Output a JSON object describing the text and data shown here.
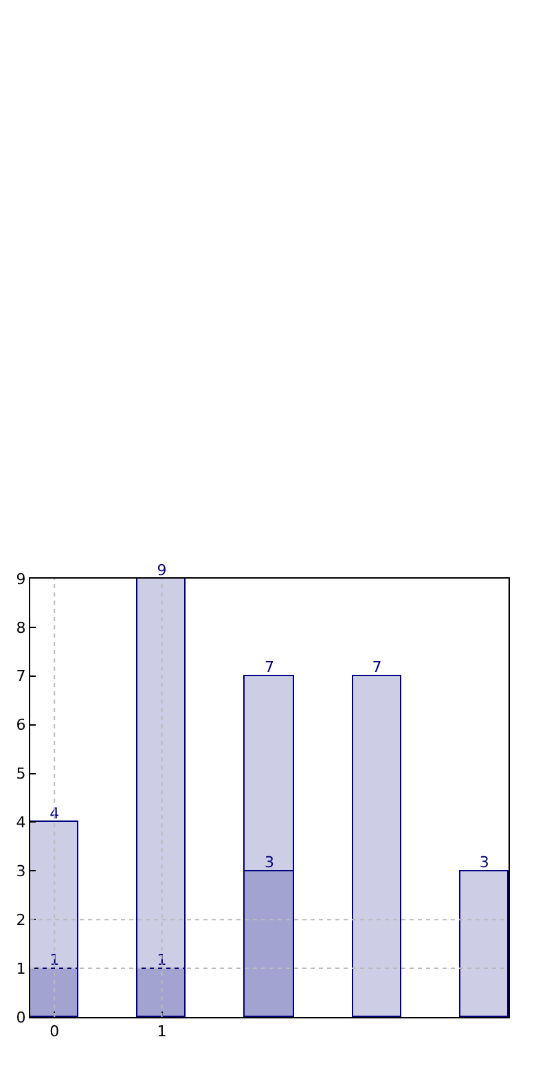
{
  "chart_data": {
    "type": "bar",
    "stacked": true,
    "x": [
      0,
      1,
      2,
      3,
      4
    ],
    "series": [
      {
        "color": "#a3a3d1",
        "values": [
          1,
          1,
          3,
          null,
          null
        ],
        "value_labels": [
          "1",
          "1",
          "3",
          null,
          null
        ]
      },
      {
        "color": "#cdcde6",
        "values": [
          3,
          8,
          4,
          7,
          3
        ]
      }
    ],
    "totals": [
      "4",
      "9",
      "7",
      "7",
      "3"
    ],
    "xlim": [
      -0.225,
      4.225
    ],
    "xticks": [
      0,
      1
    ],
    "ylim": [
      0,
      9
    ],
    "yticks": [
      0,
      1,
      2,
      3,
      4,
      5,
      6,
      7,
      8,
      9
    ],
    "ref_lines": [
      {
        "axis": "x",
        "value": 0,
        "color": "#bbbbbb",
        "line_style": "dotted"
      },
      {
        "axis": "x",
        "value": 1,
        "color": "#bbbbbb",
        "line_style": "dotted"
      },
      {
        "axis": "y",
        "value": 1,
        "color": "#bbbbbb",
        "line_style": "dotted"
      },
      {
        "axis": "y",
        "value": 2,
        "color": "#bbbbbb",
        "line_style": "dotted"
      }
    ]
  }
}
